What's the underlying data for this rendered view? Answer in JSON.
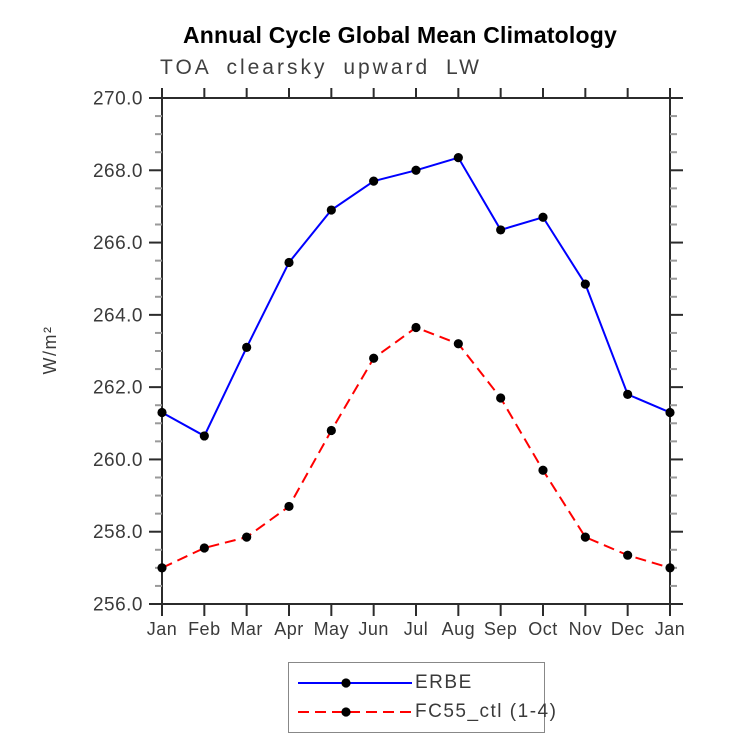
{
  "chart_data": {
    "type": "line",
    "title": "Annual Cycle Global Mean Climatology",
    "subtitle": "TOA clearsky upward LW",
    "ylabel": "W/m²",
    "xlabel": "",
    "categories": [
      "Jan",
      "Feb",
      "Mar",
      "Apr",
      "May",
      "Jun",
      "Jul",
      "Aug",
      "Sep",
      "Oct",
      "Nov",
      "Dec",
      "Jan"
    ],
    "ylim": [
      256.0,
      270.0
    ],
    "ytick_interval": 2.0,
    "yminor_interval": 0.5,
    "grid": false,
    "legend_position": "bottom-center",
    "axis_color": "#2b2b2b",
    "minor_tick_color": "#9a9a9a",
    "label_color": "#3a3a3a",
    "series": [
      {
        "name": "ERBE",
        "color": "#0000ff",
        "line_style": "solid",
        "marker": "circle",
        "marker_color": "#000000",
        "values": [
          261.3,
          260.65,
          263.1,
          265.45,
          266.9,
          267.7,
          268.0,
          268.35,
          266.35,
          266.7,
          264.85,
          261.8,
          261.3
        ]
      },
      {
        "name": "FC55_ctl (1-4)",
        "color": "#ff0000",
        "line_style": "dashed",
        "marker": "circle",
        "marker_color": "#000000",
        "values": [
          257.0,
          257.55,
          257.85,
          258.7,
          260.8,
          262.8,
          263.65,
          263.2,
          261.7,
          259.7,
          257.85,
          257.35,
          257.0
        ]
      }
    ]
  }
}
